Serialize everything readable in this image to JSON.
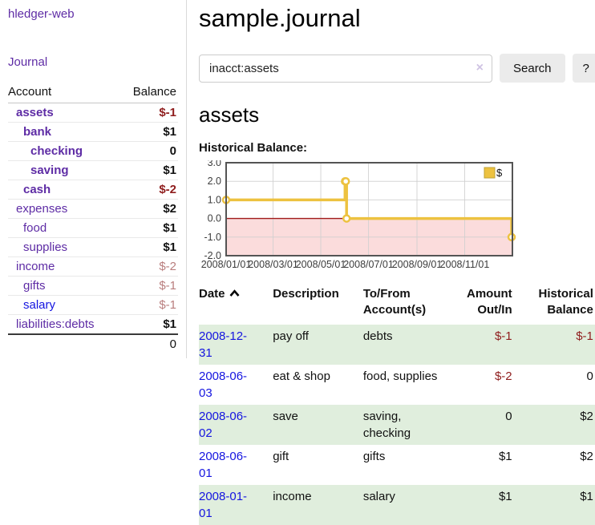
{
  "colors": {
    "link_purple": "#5e2ca5",
    "link_blue": "#1414e0",
    "negative_strong": "#8f1d1d",
    "negative_dim": "#b97e7e",
    "row_stripe_green": "#e0eedd",
    "chart_line_gold": "#edc240",
    "chart_negative_fill": "#fbdcdc",
    "chart_zero_line": "#a11a1a",
    "chart_frame": "#545454"
  },
  "sidebar": {
    "app_title": "hledger-web",
    "nav_journal": "Journal",
    "accounts": {
      "col_account": "Account",
      "col_balance": "Balance",
      "rows": [
        {
          "name": "assets",
          "depth": 1,
          "bold": true,
          "balance": "$-1",
          "balance_style": "negative"
        },
        {
          "name": "bank",
          "depth": 2,
          "bold": true,
          "balance": "$1",
          "balance_style": "normal"
        },
        {
          "name": "checking",
          "depth": 3,
          "bold": true,
          "balance": "0",
          "balance_style": "normal"
        },
        {
          "name": "saving",
          "depth": 3,
          "bold": true,
          "balance": "$1",
          "balance_style": "normal"
        },
        {
          "name": "cash",
          "depth": 2,
          "bold": true,
          "balance": "$-2",
          "balance_style": "negative"
        },
        {
          "name": "expenses",
          "depth": 1,
          "bold": false,
          "balance": "$2",
          "balance_style": "normal"
        },
        {
          "name": "food",
          "depth": 2,
          "bold": false,
          "balance": "$1",
          "balance_style": "normal"
        },
        {
          "name": "supplies",
          "depth": 2,
          "bold": false,
          "balance": "$1",
          "balance_style": "normal"
        },
        {
          "name": "income",
          "depth": 1,
          "bold": false,
          "balance": "$-2",
          "balance_style": "negative-dim"
        },
        {
          "name": "gifts",
          "depth": 2,
          "bold": false,
          "balance": "$-1",
          "balance_style": "negative-dim"
        },
        {
          "name": "salary",
          "depth": 2,
          "bold": false,
          "link_style": "blue",
          "balance": "$-1",
          "balance_style": "negative-dim"
        },
        {
          "name": "liabilities:debts",
          "depth": 1,
          "bold": false,
          "balance": "$1",
          "balance_style": "normal"
        }
      ],
      "total": "0"
    }
  },
  "main": {
    "title": "sample.journal",
    "search": {
      "value": "inacct:assets",
      "clear_icon": "×",
      "button_label": "Search",
      "help_label": "?"
    },
    "account_heading": "assets",
    "chart_heading": "Historical Balance:"
  },
  "chart_data": {
    "type": "line",
    "step": true,
    "title": "Historical Balance",
    "series": [
      {
        "name": "$",
        "color": "#edc240",
        "points": [
          [
            "2008-01-01",
            1
          ],
          [
            "2008-06-01",
            2
          ],
          [
            "2008-06-02",
            2
          ],
          [
            "2008-06-03",
            0
          ],
          [
            "2008-12-31",
            -1
          ]
        ]
      }
    ],
    "x_range": [
      "2008-01-01",
      "2009-01-01"
    ],
    "x_ticks": [
      "2008/01/01",
      "2008/03/01",
      "2008/05/01",
      "2008/07/01",
      "2008/09/01",
      "2008/11/01"
    ],
    "y_ticks": [
      3.0,
      2.0,
      1.0,
      0.0,
      -1.0,
      -2.0
    ],
    "ylim": [
      -2,
      3
    ],
    "grid": true,
    "legend_position": "top-right",
    "legend_label": "$",
    "negative_region": true
  },
  "register": {
    "headers": [
      {
        "label": "Date",
        "icon": "chevron-up",
        "align": "left"
      },
      {
        "label": "Description",
        "align": "left"
      },
      {
        "label": "To/From Account(s)",
        "align": "left"
      },
      {
        "label": "Amount Out/In",
        "align": "right"
      },
      {
        "label": "Historical Balance",
        "align": "right"
      }
    ],
    "rows": [
      {
        "date": "2008-12-31",
        "description": "pay off",
        "accounts": "debts",
        "amount": "$-1",
        "amount_style": "negative",
        "balance": "$-1",
        "balance_style": "negative"
      },
      {
        "date": "2008-06-03",
        "description": "eat & shop",
        "accounts": "food, supplies",
        "amount": "$-2",
        "amount_style": "negative",
        "balance": "0",
        "balance_style": "normal"
      },
      {
        "date": "2008-06-02",
        "description": "save",
        "accounts": "saving, checking",
        "amount": "0",
        "amount_style": "normal",
        "balance": "$2",
        "balance_style": "normal"
      },
      {
        "date": "2008-06-01",
        "description": "gift",
        "accounts": "gifts",
        "amount": "$1",
        "amount_style": "normal",
        "balance": "$2",
        "balance_style": "normal"
      },
      {
        "date": "2008-01-01",
        "description": "income",
        "accounts": "salary",
        "amount": "$1",
        "amount_style": "normal",
        "balance": "$1",
        "balance_style": "normal"
      }
    ]
  }
}
